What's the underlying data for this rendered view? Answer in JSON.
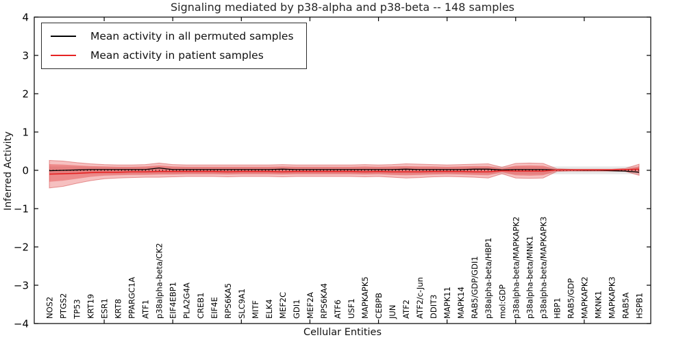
{
  "chart_data": {
    "type": "line",
    "title": "Signaling mediated by p38-alpha and p38-beta -- 148 samples",
    "xlabel": "Cellular Entities",
    "ylabel": "Inferred Activity",
    "ylim": [
      -4,
      4
    ],
    "yticks": [
      4,
      3,
      2,
      1,
      0,
      -1,
      -2,
      -3,
      -4
    ],
    "x_major_ticks": [
      5,
      10,
      15,
      20,
      25,
      30,
      35,
      40
    ],
    "grid": false,
    "legend_position": "upper left",
    "categories": [
      "NOS2",
      "PTGS2",
      "TP53",
      "KRT19",
      "ESR1",
      "KRT8",
      "PPARGC1A",
      "ATF1",
      "p38alpha-beta/CK2",
      "EIF4EBP1",
      "PLA2G4A",
      "CREB1",
      "EIF4E",
      "RPS6KA5",
      "SLC9A1",
      "MITF",
      "ELK4",
      "MEF2C",
      "GDI1",
      "MEF2A",
      "RPS6KA4",
      "ATF6",
      "USF1",
      "MAPKAPK5",
      "CEBPB",
      "JUN",
      "ATF2",
      "ATF2/c-Jun",
      "DDIT3",
      "MAPK11",
      "MAPK14",
      "RAB5/GDP/GDI1",
      "p38alpha-beta/HBP1",
      "mol:GDP",
      "p38alpha-beta/MAPKAPK2",
      "p38alpha-beta/MNK1",
      "p38alpha-beta/MAPKAPK3",
      "HBP1",
      "RAB5/GDP",
      "MAPKAPK2",
      "MKNK1",
      "MAPKAPK3",
      "RAB5A",
      "HSPB1"
    ],
    "series": [
      {
        "name": "Mean activity in all permuted samples",
        "color": "#000000",
        "values": [
          -0.01,
          0.0,
          0.01,
          0.02,
          0.02,
          0.02,
          0.02,
          0.02,
          0.06,
          0.02,
          0.02,
          0.02,
          0.02,
          0.02,
          0.02,
          0.02,
          0.02,
          0.03,
          0.02,
          0.02,
          0.02,
          0.02,
          0.02,
          0.02,
          0.02,
          0.02,
          0.03,
          0.02,
          0.02,
          0.02,
          0.02,
          0.03,
          0.03,
          0.01,
          0.02,
          0.02,
          0.02,
          0.01,
          0.01,
          0.0,
          0.0,
          -0.01,
          -0.02,
          -0.05
        ]
      },
      {
        "name": "Mean activity in patient samples",
        "color": "#e62222",
        "values": [
          -0.1,
          -0.09,
          -0.08,
          -0.06,
          -0.05,
          -0.05,
          -0.04,
          -0.04,
          -0.03,
          -0.03,
          -0.03,
          -0.03,
          -0.03,
          -0.04,
          -0.03,
          -0.03,
          -0.03,
          -0.04,
          -0.03,
          -0.03,
          -0.03,
          -0.03,
          -0.03,
          -0.04,
          -0.03,
          -0.04,
          -0.04,
          -0.04,
          -0.03,
          -0.03,
          -0.03,
          -0.04,
          -0.04,
          -0.01,
          -0.02,
          -0.02,
          -0.02,
          0.01,
          0.01,
          0.01,
          0.01,
          0.01,
          0.02,
          0.03
        ]
      }
    ],
    "bands": [
      {
        "name": "patient-outer-band",
        "fill": "rgba(228,58,58,0.32)",
        "edge": "rgba(205,45,45,0.45)",
        "hi": [
          0.26,
          0.24,
          0.2,
          0.17,
          0.15,
          0.14,
          0.14,
          0.15,
          0.19,
          0.15,
          0.14,
          0.14,
          0.14,
          0.14,
          0.14,
          0.14,
          0.14,
          0.15,
          0.14,
          0.14,
          0.14,
          0.14,
          0.14,
          0.15,
          0.14,
          0.15,
          0.17,
          0.16,
          0.15,
          0.14,
          0.15,
          0.16,
          0.17,
          0.08,
          0.18,
          0.19,
          0.18,
          0.04,
          0.03,
          0.03,
          0.03,
          0.03,
          0.05,
          0.16
        ],
        "lo": [
          -0.46,
          -0.42,
          -0.34,
          -0.27,
          -0.22,
          -0.2,
          -0.19,
          -0.18,
          -0.18,
          -0.17,
          -0.16,
          -0.16,
          -0.16,
          -0.17,
          -0.16,
          -0.16,
          -0.16,
          -0.17,
          -0.16,
          -0.16,
          -0.16,
          -0.16,
          -0.16,
          -0.17,
          -0.16,
          -0.18,
          -0.2,
          -0.19,
          -0.17,
          -0.16,
          -0.17,
          -0.18,
          -0.2,
          -0.09,
          -0.2,
          -0.21,
          -0.2,
          -0.03,
          -0.02,
          -0.02,
          -0.02,
          -0.02,
          -0.03,
          -0.13
        ]
      },
      {
        "name": "patient-inner-band",
        "fill": "rgba(228,58,58,0.40)",
        "edge": "none",
        "hi": [
          0.16,
          0.15,
          0.13,
          0.11,
          0.1,
          0.09,
          0.09,
          0.1,
          0.13,
          0.1,
          0.09,
          0.09,
          0.09,
          0.09,
          0.09,
          0.09,
          0.09,
          0.1,
          0.09,
          0.09,
          0.09,
          0.09,
          0.09,
          0.1,
          0.09,
          0.1,
          0.11,
          0.1,
          0.1,
          0.09,
          0.1,
          0.11,
          0.11,
          0.05,
          0.12,
          0.13,
          0.12,
          0.02,
          0.02,
          0.02,
          0.02,
          0.02,
          0.03,
          0.1
        ],
        "lo": [
          -0.3,
          -0.27,
          -0.22,
          -0.17,
          -0.14,
          -0.13,
          -0.12,
          -0.12,
          -0.11,
          -0.11,
          -0.1,
          -0.1,
          -0.1,
          -0.11,
          -0.1,
          -0.1,
          -0.1,
          -0.11,
          -0.1,
          -0.1,
          -0.1,
          -0.1,
          -0.1,
          -0.11,
          -0.1,
          -0.12,
          -0.13,
          -0.12,
          -0.11,
          -0.1,
          -0.11,
          -0.12,
          -0.13,
          -0.05,
          -0.13,
          -0.14,
          -0.13,
          -0.02,
          -0.01,
          -0.01,
          -0.01,
          -0.01,
          -0.02,
          -0.07
        ]
      }
    ],
    "gray_band": {
      "hi": 0.1,
      "lo": -0.1,
      "fill": "rgba(120,120,120,0.18)"
    },
    "zero_line": 0
  }
}
